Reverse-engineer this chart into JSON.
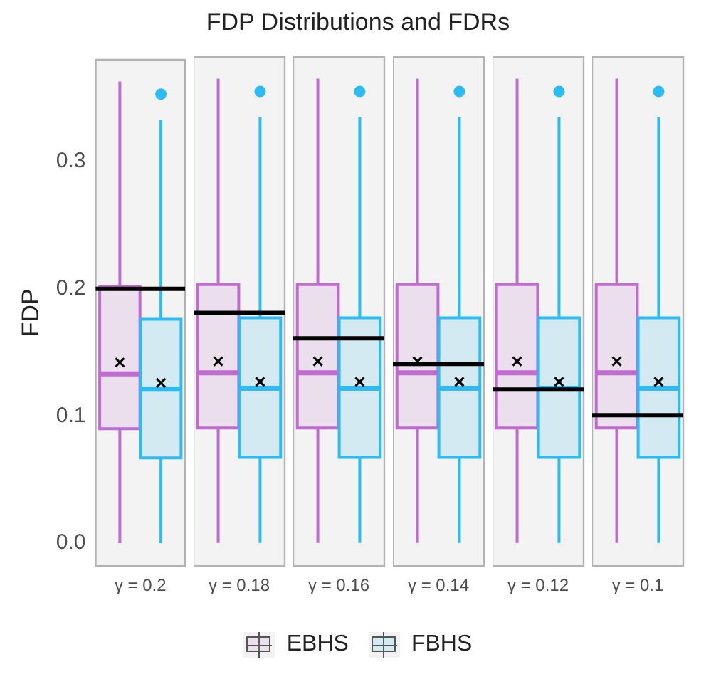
{
  "chart_data": [
    {
      "type": "other",
      "title": "FDP Distributions and FDRs"
    },
    {
      "type": "box",
      "ylabel": "FDP",
      "categories": [
        "γ = 0.2"
      ],
      "legend": "bottom",
      "ylim": [
        -0.018,
        0.38
      ],
      "yticks": [
        {
          "value": 0,
          "label": "0.0"
        },
        0.1,
        0.2,
        0.3
      ],
      "series": [
        {
          "name": "EBHS",
          "color": "#c06bcf",
          "boxes": [
            {
              "low": 0,
              "q1": 0.09,
              "median": 0.133,
              "q3": 0.202,
              "high": 0.363,
              "mean": 0.142
            }
          ]
        },
        {
          "name": "FBHS",
          "color": "#2bbcf5",
          "boxes": [
            {
              "low": 0,
              "q1": 0.067,
              "median": 0.121,
              "q3": 0.176,
              "high": 0.333,
              "mean": 0.126,
              "outliers": [
                0.353
              ]
            }
          ]
        }
      ],
      "ref_lines": [
        {
          "axis": "y",
          "value": 0.2,
          "color": "#000000"
        }
      ]
    },
    {
      "type": "box",
      "categories": [
        "γ = 0.18"
      ],
      "tick_labels": "x",
      "ylim": [
        -0.018,
        0.38
      ],
      "series": [
        {
          "color": "#c06bcf",
          "boxes": [
            {
              "low": 0,
              "q1": 0.09,
              "median": 0.133,
              "q3": 0.202,
              "high": 0.363,
              "mean": 0.142
            }
          ]
        },
        {
          "color": "#2bbcf5",
          "boxes": [
            {
              "low": 0,
              "q1": 0.067,
              "median": 0.121,
              "q3": 0.176,
              "high": 0.333,
              "mean": 0.126,
              "outliers": [
                0.353
              ]
            }
          ]
        }
      ],
      "ref_lines": [
        {
          "axis": "y",
          "value": 0.18,
          "color": "#000000"
        }
      ]
    },
    {
      "type": "box",
      "categories": [
        "γ = 0.16"
      ],
      "tick_labels": "x",
      "ylim": [
        -0.018,
        0.38
      ],
      "series": [
        {
          "color": "#c06bcf",
          "boxes": [
            {
              "low": 0,
              "q1": 0.09,
              "median": 0.133,
              "q3": 0.202,
              "high": 0.363,
              "mean": 0.142
            }
          ]
        },
        {
          "color": "#2bbcf5",
          "boxes": [
            {
              "low": 0,
              "q1": 0.067,
              "median": 0.121,
              "q3": 0.176,
              "high": 0.333,
              "mean": 0.126,
              "outliers": [
                0.353
              ]
            }
          ]
        }
      ],
      "ref_lines": [
        {
          "axis": "y",
          "value": 0.16,
          "color": "#000000"
        }
      ]
    },
    {
      "type": "box",
      "categories": [
        "γ = 0.14"
      ],
      "tick_labels": "x",
      "ylim": [
        -0.018,
        0.38
      ],
      "series": [
        {
          "color": "#c06bcf",
          "boxes": [
            {
              "low": 0,
              "q1": 0.09,
              "median": 0.133,
              "q3": 0.202,
              "high": 0.363,
              "mean": 0.142
            }
          ]
        },
        {
          "color": "#2bbcf5",
          "boxes": [
            {
              "low": 0,
              "q1": 0.067,
              "median": 0.121,
              "q3": 0.176,
              "high": 0.333,
              "mean": 0.126,
              "outliers": [
                0.353
              ]
            }
          ]
        }
      ],
      "ref_lines": [
        {
          "axis": "y",
          "value": 0.14,
          "color": "#000000"
        }
      ]
    },
    {
      "type": "box",
      "categories": [
        "γ = 0.12"
      ],
      "tick_labels": "x",
      "ylim": [
        -0.018,
        0.38
      ],
      "series": [
        {
          "color": "#c06bcf",
          "boxes": [
            {
              "low": 0,
              "q1": 0.09,
              "median": 0.133,
              "q3": 0.202,
              "high": 0.363,
              "mean": 0.142
            }
          ]
        },
        {
          "color": "#2bbcf5",
          "boxes": [
            {
              "low": 0,
              "q1": 0.067,
              "median": 0.121,
              "q3": 0.176,
              "high": 0.333,
              "mean": 0.126,
              "outliers": [
                0.353
              ]
            }
          ]
        }
      ],
      "ref_lines": [
        {
          "axis": "y",
          "value": 0.12,
          "color": "#000000"
        }
      ]
    },
    {
      "type": "box",
      "categories": [
        "γ = 0.1"
      ],
      "tick_labels": "x",
      "ylim": [
        -0.018,
        0.38
      ],
      "series": [
        {
          "color": "#c06bcf",
          "boxes": [
            {
              "low": 0,
              "q1": 0.09,
              "median": 0.133,
              "q3": 0.202,
              "high": 0.363,
              "mean": 0.142
            }
          ]
        },
        {
          "color": "#2bbcf5",
          "boxes": [
            {
              "low": 0,
              "q1": 0.067,
              "median": 0.121,
              "q3": 0.176,
              "high": 0.333,
              "mean": 0.126,
              "outliers": [
                0.353
              ]
            }
          ]
        }
      ],
      "ref_lines": [
        {
          "axis": "y",
          "value": 0.1,
          "color": "#000000"
        }
      ]
    }
  ]
}
